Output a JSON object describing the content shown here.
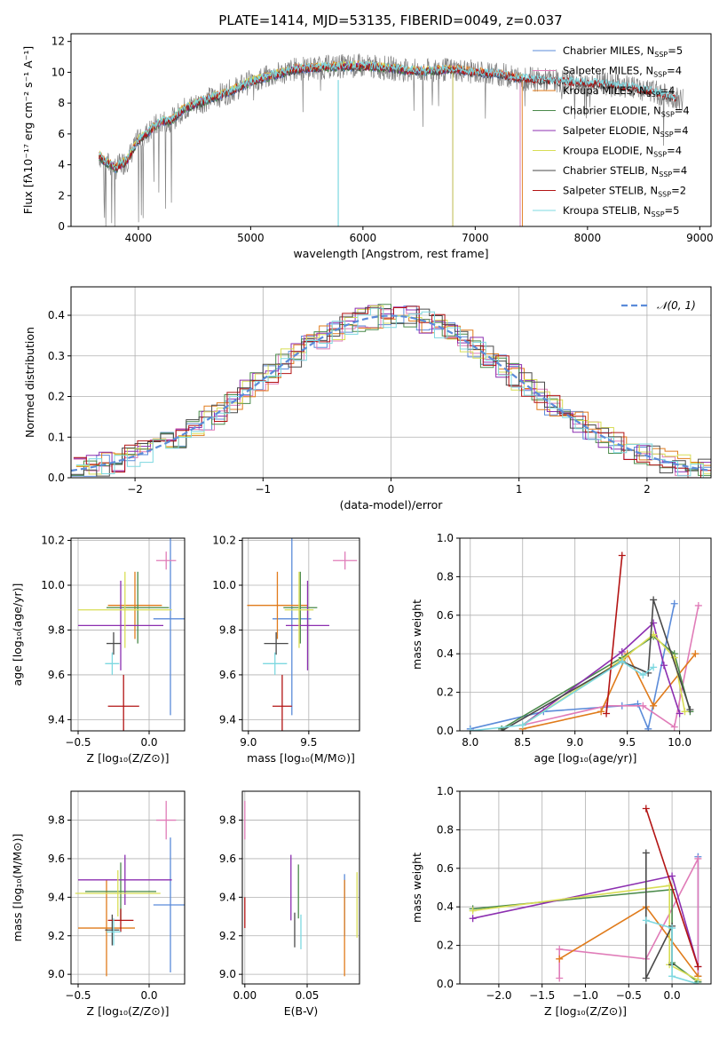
{
  "title": "PLATE=1414, MJD=53135, FIBERID=0049, z=0.037",
  "colors": {
    "Chabrier MILES": "#5b8bd9",
    "Salpeter MILES": "#e07cb8",
    "Kroupa MILES": "#e07b1b",
    "Chabrier ELODIE": "#4a8a4a",
    "Salpeter ELODIE": "#8c2fb0",
    "Kroupa ELODIE": "#d8dd55",
    "Chabrier STELIB": "#4a4a4a",
    "Salpeter STELIB": "#b31414",
    "Kroupa STELIB": "#7dd8e0",
    "data": "#808080",
    "normal": "#5b8bd9"
  },
  "chart_data": [
    {
      "type": "line",
      "id": "spectrum",
      "xlabel": "wavelength [Angstrom, rest frame]",
      "ylabel": "Flux [fλ10⁻¹⁷ erg cm⁻² s⁻¹ A⁻¹]",
      "xlim": [
        3400,
        9100
      ],
      "ylim": [
        0,
        12.5
      ],
      "xticks": [
        4000,
        5000,
        6000,
        7000,
        8000,
        9000
      ],
      "yticks": [
        0,
        2,
        4,
        6,
        8,
        10,
        12
      ],
      "legend_position": "top-right",
      "legend": [
        {
          "name": "Chabrier MILES",
          "label": "Chabrier MILES, N",
          "sub": "SSP",
          "n": "=5"
        },
        {
          "name": "Salpeter MILES",
          "label": "Salpeter MILES, N",
          "sub": "SSP",
          "n": "=4"
        },
        {
          "name": "Kroupa MILES",
          "label": "Kroupa MILES, N",
          "sub": "SSP",
          "n": "=4"
        },
        {
          "name": "Chabrier ELODIE",
          "label": "Chabrier ELODIE, N",
          "sub": "SSP",
          "n": "=4"
        },
        {
          "name": "Salpeter ELODIE",
          "label": "Salpeter ELODIE, N",
          "sub": "SSP",
          "n": "=4"
        },
        {
          "name": "Kroupa ELODIE",
          "label": "Kroupa ELODIE, N",
          "sub": "SSP",
          "n": "=4"
        },
        {
          "name": "Chabrier STELIB",
          "label": "Chabrier STELIB, N",
          "sub": "SSP",
          "n": "=4"
        },
        {
          "name": "Salpeter STELIB",
          "label": "Salpeter STELIB, N",
          "sub": "SSP",
          "n": "=2"
        },
        {
          "name": "Kroupa STELIB",
          "label": "Kroupa STELIB, N",
          "sub": "SSP",
          "n": "=5"
        }
      ],
      "continuum": {
        "x": [
          3650,
          3700,
          3800,
          3900,
          4000,
          4100,
          4200,
          4300,
          4400,
          4600,
          4800,
          5000,
          5200,
          5400,
          5600,
          5800,
          6000,
          6200,
          6400,
          6600,
          6800,
          7000,
          7200,
          7400,
          7600,
          7800,
          8000,
          8200,
          8400,
          8600,
          8800
        ],
        "y": [
          4.6,
          4.2,
          3.8,
          4.3,
          5.6,
          6.2,
          6.8,
          6.9,
          7.6,
          8.2,
          8.7,
          9.4,
          9.8,
          10.2,
          10.3,
          10.4,
          10.4,
          10.3,
          10.1,
          10.1,
          10.2,
          10.0,
          9.9,
          9.6,
          9.5,
          9.4,
          9.3,
          9.2,
          9.0,
          8.7,
          8.3
        ]
      },
      "model_ranges": {
        "Chabrier MILES": [
          3650,
          7400
        ],
        "Salpeter MILES": [
          3650,
          7400
        ],
        "Kroupa MILES": [
          3650,
          7420
        ],
        "Chabrier ELODIE": [
          3650,
          6800
        ],
        "Salpeter ELODIE": [
          3650,
          6800
        ],
        "Kroupa ELODIE": [
          3650,
          6800
        ],
        "Chabrier STELIB": [
          3650,
          8800
        ],
        "Salpeter STELIB": [
          3650,
          8800
        ],
        "Kroupa STELIB": [
          3650,
          8800
        ]
      }
    },
    {
      "type": "area",
      "id": "residuals",
      "xlabel": "(data-model)/error",
      "ylabel": "Normed distribution",
      "xlim": [
        -2.5,
        2.5
      ],
      "ylim": [
        0,
        0.47
      ],
      "xticks": [
        -2,
        -1,
        0,
        1,
        2
      ],
      "yticks": [
        0.0,
        0.1,
        0.2,
        0.3,
        0.4
      ],
      "grid": true,
      "legend_position": "top-right",
      "normal_label": "𝒩(0, 1)"
    },
    {
      "type": "scatter",
      "id": "age_vs_Z",
      "xlabel": "Z [log₁₀(Z/Z⊙)]",
      "ylabel": "age  [log₁₀(age/yr)]",
      "xlim": [
        -0.55,
        0.25
      ],
      "ylim": [
        9.35,
        10.21
      ],
      "xticks": [
        -0.5,
        0.0
      ],
      "yticks": [
        9.4,
        9.6,
        9.8,
        10.0,
        10.2
      ],
      "grid": true,
      "points": [
        {
          "name": "Chabrier MILES",
          "x": 0.15,
          "y": 9.85,
          "xerr": 0.12,
          "yerr": 0.43
        },
        {
          "name": "Salpeter MILES",
          "x": 0.12,
          "y": 10.11,
          "xerr": 0.07,
          "yerr": 0.04
        },
        {
          "name": "Kroupa MILES",
          "x": -0.1,
          "y": 9.91,
          "xerr": 0.19,
          "yerr": 0.15
        },
        {
          "name": "Chabrier ELODIE",
          "x": -0.08,
          "y": 9.9,
          "xerr": 0.22,
          "yerr": 0.16
        },
        {
          "name": "Salpeter ELODIE",
          "x": -0.2,
          "y": 9.82,
          "xerr": 0.3,
          "yerr": 0.2
        },
        {
          "name": "Kroupa ELODIE",
          "x": -0.17,
          "y": 9.89,
          "xerr": 0.33,
          "yerr": 0.17
        },
        {
          "name": "Chabrier STELIB",
          "x": -0.25,
          "y": 9.74,
          "xerr": 0.05,
          "yerr": 0.05
        },
        {
          "name": "Salpeter STELIB",
          "x": -0.18,
          "y": 9.46,
          "xerr": 0.11,
          "yerr": 0.14
        },
        {
          "name": "Kroupa STELIB",
          "x": -0.26,
          "y": 9.65,
          "xerr": 0.05,
          "yerr": 0.05
        }
      ]
    },
    {
      "type": "scatter",
      "id": "age_vs_mass",
      "xlabel": "mass [log₁₀(M/M⊙)]",
      "ylabel": "",
      "xlim": [
        8.95,
        9.92
      ],
      "ylim": [
        9.35,
        10.21
      ],
      "xticks": [
        9.0,
        9.5
      ],
      "yticks": [
        9.4,
        9.6,
        9.8,
        10.0,
        10.2
      ],
      "grid": true,
      "points": [
        {
          "name": "Chabrier MILES",
          "x": 9.36,
          "y": 9.85,
          "xerr": 0.16,
          "yerr": 0.43
        },
        {
          "name": "Salpeter MILES",
          "x": 9.8,
          "y": 10.11,
          "xerr": 0.1,
          "yerr": 0.04
        },
        {
          "name": "Kroupa MILES",
          "x": 9.24,
          "y": 9.91,
          "xerr": 0.25,
          "yerr": 0.15
        },
        {
          "name": "Chabrier ELODIE",
          "x": 9.43,
          "y": 9.9,
          "xerr": 0.14,
          "yerr": 0.16
        },
        {
          "name": "Salpeter ELODIE",
          "x": 9.49,
          "y": 9.82,
          "xerr": 0.18,
          "yerr": 0.2
        },
        {
          "name": "Kroupa ELODIE",
          "x": 9.42,
          "y": 9.89,
          "xerr": 0.12,
          "yerr": 0.17
        },
        {
          "name": "Chabrier STELIB",
          "x": 9.23,
          "y": 9.74,
          "xerr": 0.1,
          "yerr": 0.05
        },
        {
          "name": "Salpeter STELIB",
          "x": 9.28,
          "y": 9.46,
          "xerr": 0.08,
          "yerr": 0.14
        },
        {
          "name": "Kroupa STELIB",
          "x": 9.22,
          "y": 9.65,
          "xerr": 0.1,
          "yerr": 0.05
        }
      ]
    },
    {
      "type": "line",
      "id": "weight_vs_age",
      "xlabel": "age  [log₁₀(age/yr)]",
      "ylabel": "mass weight",
      "xlim": [
        7.9,
        10.3
      ],
      "ylim": [
        0,
        1.0
      ],
      "xticks": [
        8.0,
        8.5,
        9.0,
        9.5,
        10.0
      ],
      "yticks": [
        0.0,
        0.2,
        0.4,
        0.6,
        0.8,
        1.0
      ],
      "grid": true,
      "series": [
        {
          "name": "Chabrier MILES",
          "points": [
            [
              8.0,
              0.01
            ],
            [
              8.7,
              0.1
            ],
            [
              9.45,
              0.13
            ],
            [
              9.6,
              0.14
            ],
            [
              9.7,
              0.01
            ],
            [
              9.95,
              0.66
            ]
          ]
        },
        {
          "name": "Salpeter MILES",
          "points": [
            [
              8.5,
              0.03
            ],
            [
              9.3,
              0.13
            ],
            [
              9.65,
              0.13
            ],
            [
              9.95,
              0.02
            ],
            [
              10.18,
              0.65
            ]
          ]
        },
        {
          "name": "Kroupa MILES",
          "points": [
            [
              8.5,
              0.01
            ],
            [
              9.25,
              0.1
            ],
            [
              9.5,
              0.4
            ],
            [
              9.75,
              0.13
            ],
            [
              10.15,
              0.4
            ]
          ]
        },
        {
          "name": "Chabrier ELODIE",
          "points": [
            [
              8.3,
              0.01
            ],
            [
              9.45,
              0.38
            ],
            [
              9.75,
              0.49
            ],
            [
              9.95,
              0.4
            ],
            [
              10.1,
              0.1
            ]
          ]
        },
        {
          "name": "Salpeter ELODIE",
          "points": [
            [
              8.5,
              0.03
            ],
            [
              9.45,
              0.41
            ],
            [
              9.75,
              0.56
            ],
            [
              9.85,
              0.34
            ],
            [
              10.0,
              0.09
            ]
          ]
        },
        {
          "name": "Kroupa ELODIE",
          "points": [
            [
              8.5,
              0.03
            ],
            [
              9.45,
              0.37
            ],
            [
              9.75,
              0.5
            ],
            [
              9.95,
              0.38
            ],
            [
              10.05,
              0.1
            ]
          ]
        },
        {
          "name": "Chabrier STELIB",
          "points": [
            [
              8.3,
              0.0
            ],
            [
              9.45,
              0.36
            ],
            [
              9.7,
              0.3
            ],
            [
              9.75,
              0.68
            ],
            [
              10.1,
              0.11
            ]
          ]
        },
        {
          "name": "Salpeter STELIB",
          "points": [
            [
              9.3,
              0.09
            ],
            [
              9.45,
              0.91
            ]
          ]
        },
        {
          "name": "Kroupa STELIB",
          "points": [
            [
              8.0,
              0.0
            ],
            [
              8.5,
              0.03
            ],
            [
              9.45,
              0.36
            ],
            [
              9.65,
              0.29
            ],
            [
              9.75,
              0.33
            ]
          ]
        }
      ]
    },
    {
      "type": "scatter",
      "id": "mass_vs_Z",
      "xlabel": "Z [log₁₀(Z/Z⊙)]",
      "ylabel": "mass [log₁₀(M/M⊙)]",
      "xlim": [
        -0.55,
        0.25
      ],
      "ylim": [
        8.95,
        9.95
      ],
      "xticks": [
        -0.5,
        0.0
      ],
      "yticks": [
        9.0,
        9.2,
        9.4,
        9.6,
        9.8
      ],
      "grid": true,
      "points": [
        {
          "name": "Chabrier MILES",
          "x": 0.15,
          "y": 9.36,
          "xerr": 0.12,
          "yerr": 0.35
        },
        {
          "name": "Salpeter MILES",
          "x": 0.12,
          "y": 9.8,
          "xerr": 0.07,
          "yerr": 0.1
        },
        {
          "name": "Kroupa MILES",
          "x": -0.3,
          "y": 9.24,
          "xerr": 0.2,
          "yerr": 0.25
        },
        {
          "name": "Chabrier ELODIE",
          "x": -0.2,
          "y": 9.43,
          "xerr": 0.25,
          "yerr": 0.15
        },
        {
          "name": "Salpeter ELODIE",
          "x": -0.17,
          "y": 9.49,
          "xerr": 0.33,
          "yerr": 0.13
        },
        {
          "name": "Kroupa ELODIE",
          "x": -0.22,
          "y": 9.42,
          "xerr": 0.3,
          "yerr": 0.12
        },
        {
          "name": "Chabrier STELIB",
          "x": -0.26,
          "y": 9.23,
          "xerr": 0.05,
          "yerr": 0.08
        },
        {
          "name": "Salpeter STELIB",
          "x": -0.2,
          "y": 9.28,
          "xerr": 0.09,
          "yerr": 0.06
        },
        {
          "name": "Kroupa STELIB",
          "x": -0.25,
          "y": 9.22,
          "xerr": 0.05,
          "yerr": 0.07
        }
      ]
    },
    {
      "type": "scatter",
      "id": "mass_vs_ebv",
      "xlabel": "E(B-V)",
      "ylabel": "",
      "xlim": [
        -0.002,
        0.092
      ],
      "ylim": [
        8.95,
        9.95
      ],
      "xticks": [
        0.0,
        0.05
      ],
      "yticks": [
        9.0,
        9.2,
        9.4,
        9.6,
        9.8
      ],
      "grid": true,
      "points": [
        {
          "name": "Chabrier MILES",
          "x": 0.08,
          "y": 9.36,
          "yerr": 0.16
        },
        {
          "name": "Salpeter MILES",
          "x": 0.0,
          "y": 9.8,
          "yerr": 0.1
        },
        {
          "name": "Kroupa MILES",
          "x": 0.08,
          "y": 9.24,
          "yerr": 0.25
        },
        {
          "name": "Chabrier ELODIE",
          "x": 0.043,
          "y": 9.43,
          "yerr": 0.14
        },
        {
          "name": "Salpeter ELODIE",
          "x": 0.037,
          "y": 9.45,
          "yerr": 0.17
        },
        {
          "name": "Kroupa ELODIE",
          "x": 0.09,
          "y": 9.36,
          "yerr": 0.17
        },
        {
          "name": "Chabrier STELIB",
          "x": 0.04,
          "y": 9.23,
          "yerr": 0.09
        },
        {
          "name": "Salpeter STELIB",
          "x": 0.0,
          "y": 9.32,
          "yerr": 0.08
        },
        {
          "name": "Kroupa STELIB",
          "x": 0.045,
          "y": 9.22,
          "yerr": 0.09
        }
      ]
    },
    {
      "type": "line",
      "id": "weight_vs_Z",
      "xlabel": "Z [log₁₀(Z/Z⊙)]",
      "ylabel": "mass weight",
      "xlim": [
        -2.45,
        0.45
      ],
      "ylim": [
        0,
        1.0
      ],
      "xticks": [
        -2.0,
        -1.5,
        -1.0,
        -0.5,
        0.0
      ],
      "yticks": [
        0.0,
        0.2,
        0.4,
        0.6,
        0.8,
        1.0
      ],
      "grid": true,
      "series": [
        {
          "name": "Chabrier MILES",
          "points": [
            [
              0.3,
              0.66
            ],
            [
              0.3,
              0.04
            ],
            [
              0.3,
              0.01
            ]
          ]
        },
        {
          "name": "Salpeter MILES",
          "points": [
            [
              -1.3,
              0.03
            ],
            [
              -1.3,
              0.18
            ],
            [
              -0.3,
              0.13
            ],
            [
              0.3,
              0.65
            ],
            [
              0.3,
              0.02
            ]
          ]
        },
        {
          "name": "Kroupa MILES",
          "points": [
            [
              -1.3,
              0.13
            ],
            [
              -0.3,
              0.4
            ],
            [
              0.3,
              0.04
            ]
          ]
        },
        {
          "name": "Chabrier ELODIE",
          "points": [
            [
              -2.3,
              0.39
            ],
            [
              0.0,
              0.49
            ],
            [
              0.0,
              0.11
            ],
            [
              0.3,
              0.01
            ]
          ]
        },
        {
          "name": "Salpeter ELODIE",
          "points": [
            [
              -2.3,
              0.34
            ],
            [
              0.0,
              0.56
            ],
            [
              0.3,
              0.09
            ]
          ]
        },
        {
          "name": "Kroupa ELODIE",
          "points": [
            [
              -2.3,
              0.38
            ],
            [
              -0.03,
              0.51
            ],
            [
              -0.03,
              0.1
            ],
            [
              0.3,
              0.02
            ]
          ]
        },
        {
          "name": "Chabrier STELIB",
          "points": [
            [
              -0.3,
              0.68
            ],
            [
              -0.3,
              0.03
            ],
            [
              0.0,
              0.3
            ],
            [
              0.0,
              0.1
            ]
          ]
        },
        {
          "name": "Salpeter STELIB",
          "points": [
            [
              -0.3,
              0.91
            ],
            [
              0.3,
              0.09
            ]
          ]
        },
        {
          "name": "Kroupa STELIB",
          "points": [
            [
              -0.3,
              0.33
            ],
            [
              0.0,
              0.29
            ],
            [
              0.0,
              0.04
            ],
            [
              0.3,
              0.0
            ]
          ]
        }
      ]
    }
  ]
}
